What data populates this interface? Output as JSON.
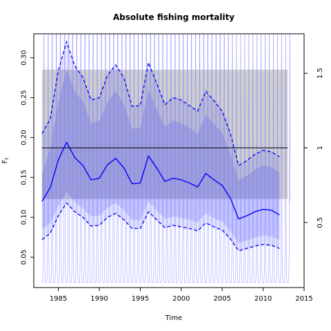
{
  "chart_data": {
    "type": "line",
    "title": "Absolute fishing mortality",
    "xlabel": "Time",
    "ylabel": "F",
    "ylabel_sub": "t",
    "xlim": [
      1982,
      2015
    ],
    "ylim": [
      0.012,
      0.33
    ],
    "x_ticks": [
      1985,
      1990,
      1995,
      2000,
      2005,
      2010,
      2015
    ],
    "y_ticks": [
      0.05,
      0.1,
      0.15,
      0.2,
      0.25,
      0.3
    ],
    "y_tick_labels": [
      "0.05",
      "0.10",
      "0.15",
      "0.20",
      "0.25",
      "0.30"
    ],
    "y2_ticks": [
      0.5,
      1,
      1.5
    ],
    "y2_tick_labels": [
      "0.5",
      "1",
      "1.5"
    ],
    "y2_reference_value": 0.187,
    "y2_reference_ratio": 1,
    "grey_band": {
      "x": [
        1983,
        2013
      ],
      "y": [
        0.123,
        0.285
      ]
    },
    "horizontal_line": 0.187,
    "years": [
      1983,
      1984,
      1985,
      1986,
      1987,
      1988,
      1989,
      1990,
      1991,
      1992,
      1993,
      1994,
      1995,
      1996,
      1997,
      1998,
      1999,
      2000,
      2001,
      2002,
      2003,
      2004,
      2005,
      2006,
      2007,
      2008,
      2009,
      2010,
      2011,
      2012
    ],
    "series": [
      {
        "role": "estimate",
        "values": [
          0.12,
          0.137,
          0.172,
          0.194,
          0.175,
          0.165,
          0.147,
          0.149,
          0.166,
          0.174,
          0.162,
          0.142,
          0.143,
          0.177,
          0.162,
          0.145,
          0.149,
          0.147,
          0.143,
          0.138,
          0.155,
          0.147,
          0.14,
          0.124,
          0.098,
          0.102,
          0.107,
          0.11,
          0.109,
          0.103
        ]
      },
      {
        "role": "upper-ci",
        "values": [
          0.205,
          0.223,
          0.284,
          0.32,
          0.29,
          0.275,
          0.247,
          0.25,
          0.278,
          0.291,
          0.275,
          0.239,
          0.24,
          0.294,
          0.268,
          0.241,
          0.25,
          0.247,
          0.24,
          0.233,
          0.258,
          0.246,
          0.233,
          0.205,
          0.165,
          0.171,
          0.179,
          0.184,
          0.182,
          0.176
        ]
      },
      {
        "role": "lower-ci",
        "values": [
          0.072,
          0.08,
          0.102,
          0.118,
          0.107,
          0.1,
          0.089,
          0.09,
          0.1,
          0.105,
          0.097,
          0.086,
          0.086,
          0.107,
          0.097,
          0.087,
          0.09,
          0.088,
          0.086,
          0.083,
          0.093,
          0.088,
          0.084,
          0.073,
          0.058,
          0.061,
          0.064,
          0.066,
          0.065,
          0.061
        ]
      },
      {
        "role": "shade-upper",
        "values": [
          0.155,
          0.185,
          0.245,
          0.285,
          0.258,
          0.245,
          0.218,
          0.221,
          0.244,
          0.258,
          0.242,
          0.211,
          0.212,
          0.26,
          0.236,
          0.214,
          0.221,
          0.218,
          0.212,
          0.205,
          0.228,
          0.217,
          0.206,
          0.18,
          0.146,
          0.152,
          0.16,
          0.165,
          0.163,
          0.156
        ]
      },
      {
        "role": "shade-lower",
        "values": [
          0.085,
          0.093,
          0.114,
          0.132,
          0.119,
          0.111,
          0.101,
          0.102,
          0.112,
          0.118,
          0.109,
          0.097,
          0.097,
          0.12,
          0.109,
          0.098,
          0.101,
          0.099,
          0.097,
          0.094,
          0.105,
          0.099,
          0.095,
          0.083,
          0.068,
          0.071,
          0.075,
          0.077,
          0.076,
          0.072
        ]
      }
    ],
    "seasonal_trace": {
      "t0": 1983.0,
      "t1": 2013.3,
      "cycles_per_year": 2,
      "min": 0.018
    }
  }
}
